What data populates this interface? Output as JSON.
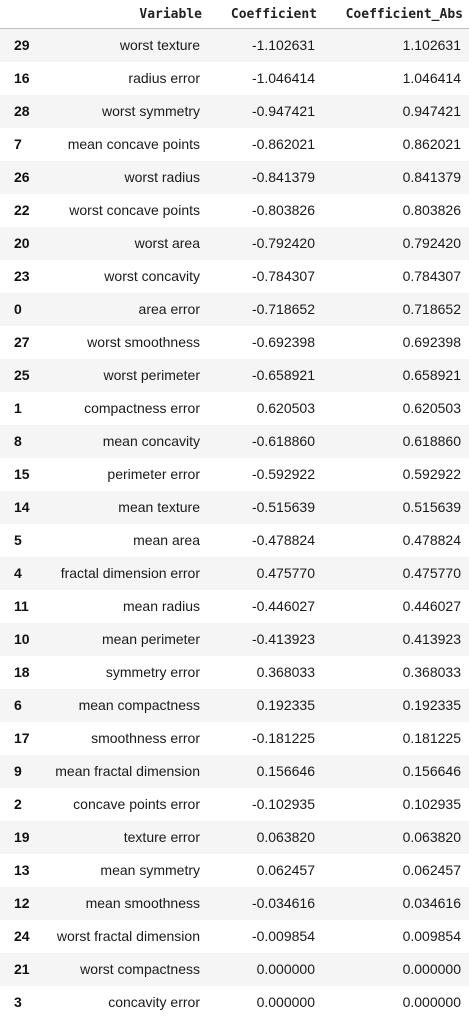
{
  "table": {
    "columns": [
      "",
      "Variable",
      "Coefficient",
      "Coefficient_Abs"
    ],
    "rows": [
      {
        "index": "29",
        "variable": "worst texture",
        "coefficient": "-1.102631",
        "coefficient_abs": "1.102631"
      },
      {
        "index": "16",
        "variable": "radius error",
        "coefficient": "-1.046414",
        "coefficient_abs": "1.046414"
      },
      {
        "index": "28",
        "variable": "worst symmetry",
        "coefficient": "-0.947421",
        "coefficient_abs": "0.947421"
      },
      {
        "index": "7",
        "variable": "mean concave points",
        "coefficient": "-0.862021",
        "coefficient_abs": "0.862021"
      },
      {
        "index": "26",
        "variable": "worst radius",
        "coefficient": "-0.841379",
        "coefficient_abs": "0.841379"
      },
      {
        "index": "22",
        "variable": "worst concave points",
        "coefficient": "-0.803826",
        "coefficient_abs": "0.803826"
      },
      {
        "index": "20",
        "variable": "worst area",
        "coefficient": "-0.792420",
        "coefficient_abs": "0.792420"
      },
      {
        "index": "23",
        "variable": "worst concavity",
        "coefficient": "-0.784307",
        "coefficient_abs": "0.784307"
      },
      {
        "index": "0",
        "variable": "area error",
        "coefficient": "-0.718652",
        "coefficient_abs": "0.718652"
      },
      {
        "index": "27",
        "variable": "worst smoothness",
        "coefficient": "-0.692398",
        "coefficient_abs": "0.692398"
      },
      {
        "index": "25",
        "variable": "worst perimeter",
        "coefficient": "-0.658921",
        "coefficient_abs": "0.658921"
      },
      {
        "index": "1",
        "variable": "compactness error",
        "coefficient": "0.620503",
        "coefficient_abs": "0.620503"
      },
      {
        "index": "8",
        "variable": "mean concavity",
        "coefficient": "-0.618860",
        "coefficient_abs": "0.618860"
      },
      {
        "index": "15",
        "variable": "perimeter error",
        "coefficient": "-0.592922",
        "coefficient_abs": "0.592922"
      },
      {
        "index": "14",
        "variable": "mean texture",
        "coefficient": "-0.515639",
        "coefficient_abs": "0.515639"
      },
      {
        "index": "5",
        "variable": "mean area",
        "coefficient": "-0.478824",
        "coefficient_abs": "0.478824"
      },
      {
        "index": "4",
        "variable": "fractal dimension error",
        "coefficient": "0.475770",
        "coefficient_abs": "0.475770"
      },
      {
        "index": "11",
        "variable": "mean radius",
        "coefficient": "-0.446027",
        "coefficient_abs": "0.446027"
      },
      {
        "index": "10",
        "variable": "mean perimeter",
        "coefficient": "-0.413923",
        "coefficient_abs": "0.413923"
      },
      {
        "index": "18",
        "variable": "symmetry error",
        "coefficient": "0.368033",
        "coefficient_abs": "0.368033"
      },
      {
        "index": "6",
        "variable": "mean compactness",
        "coefficient": "0.192335",
        "coefficient_abs": "0.192335"
      },
      {
        "index": "17",
        "variable": "smoothness error",
        "coefficient": "-0.181225",
        "coefficient_abs": "0.181225"
      },
      {
        "index": "9",
        "variable": "mean fractal dimension",
        "coefficient": "0.156646",
        "coefficient_abs": "0.156646"
      },
      {
        "index": "2",
        "variable": "concave points error",
        "coefficient": "-0.102935",
        "coefficient_abs": "0.102935"
      },
      {
        "index": "19",
        "variable": "texture error",
        "coefficient": "0.063820",
        "coefficient_abs": "0.063820"
      },
      {
        "index": "13",
        "variable": "mean symmetry",
        "coefficient": "0.062457",
        "coefficient_abs": "0.062457"
      },
      {
        "index": "12",
        "variable": "mean smoothness",
        "coefficient": "-0.034616",
        "coefficient_abs": "0.034616"
      },
      {
        "index": "24",
        "variable": "worst fractal dimension",
        "coefficient": "-0.009854",
        "coefficient_abs": "0.009854"
      },
      {
        "index": "21",
        "variable": "worst compactness",
        "coefficient": "0.000000",
        "coefficient_abs": "0.000000"
      },
      {
        "index": "3",
        "variable": "concavity error",
        "coefficient": "0.000000",
        "coefficient_abs": "0.000000"
      }
    ]
  },
  "colors": {
    "row_stripe": "#f5f5f5",
    "row_plain": "#ffffff",
    "header_border": "#bdbdbd"
  }
}
